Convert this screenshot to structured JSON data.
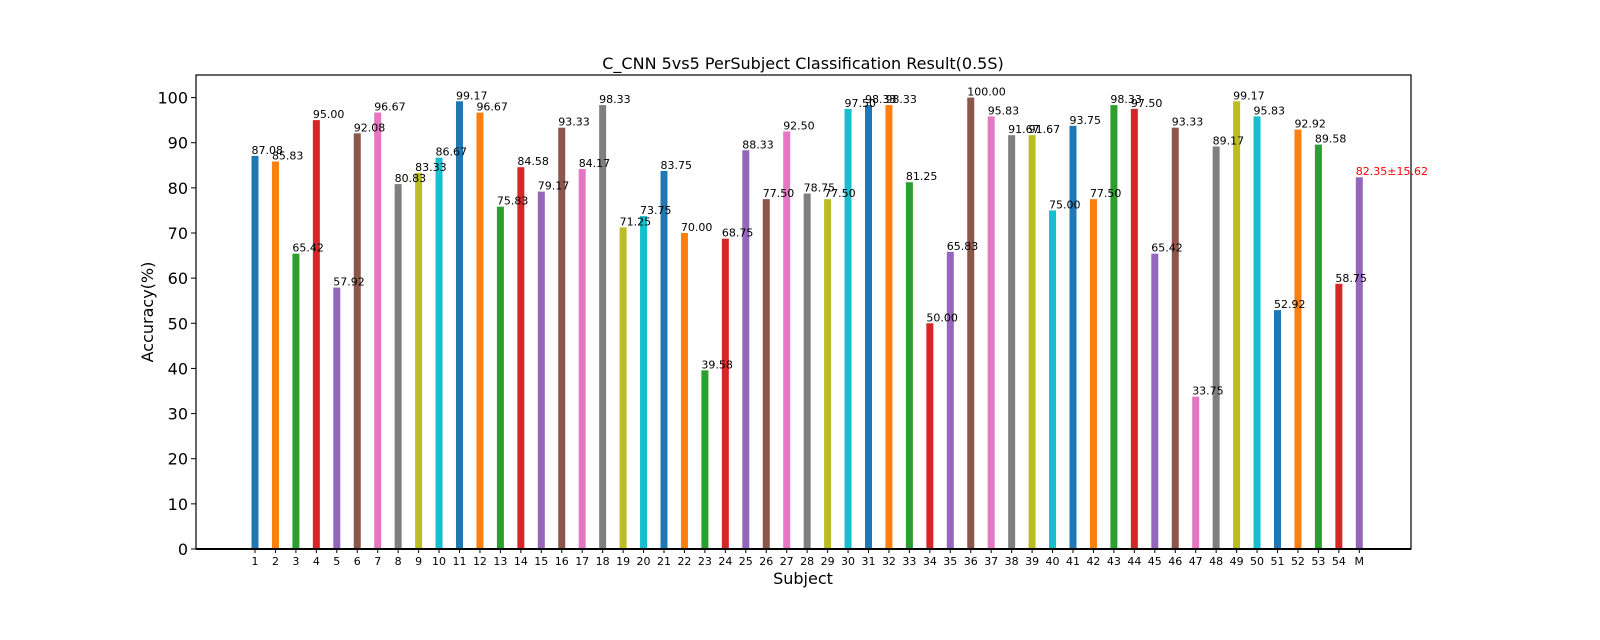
{
  "chart_data": {
    "type": "bar",
    "title": "C_CNN 5vs5 PerSubject Classification Result(0.5S)",
    "xlabel": "Subject",
    "ylabel": "Accuracy(%)",
    "ylim": [
      0,
      105
    ],
    "yticks": [
      0,
      10,
      20,
      30,
      40,
      50,
      60,
      70,
      80,
      90,
      100
    ],
    "grid": false,
    "categories": [
      "1",
      "2",
      "3",
      "4",
      "5",
      "6",
      "7",
      "8",
      "9",
      "10",
      "11",
      "12",
      "13",
      "14",
      "15",
      "16",
      "17",
      "18",
      "19",
      "20",
      "21",
      "22",
      "23",
      "24",
      "25",
      "26",
      "27",
      "28",
      "29",
      "30",
      "31",
      "32",
      "33",
      "34",
      "35",
      "36",
      "37",
      "38",
      "39",
      "40",
      "41",
      "42",
      "43",
      "44",
      "45",
      "46",
      "47",
      "48",
      "49",
      "50",
      "51",
      "52",
      "53",
      "54",
      "M"
    ],
    "values": [
      87.08,
      85.83,
      65.42,
      95.0,
      57.92,
      92.08,
      96.67,
      80.83,
      83.33,
      86.67,
      99.17,
      96.67,
      75.83,
      84.58,
      79.17,
      93.33,
      84.17,
      98.33,
      71.25,
      73.75,
      83.75,
      70.0,
      39.58,
      68.75,
      88.33,
      77.5,
      92.5,
      78.75,
      77.5,
      97.5,
      98.33,
      98.33,
      81.25,
      50.0,
      65.83,
      100.0,
      95.83,
      91.67,
      91.67,
      75.0,
      93.75,
      77.5,
      98.33,
      97.5,
      65.42,
      93.33,
      33.75,
      89.17,
      99.17,
      95.83,
      52.92,
      92.92,
      89.58,
      58.75,
      82.35
    ],
    "data_labels": [
      "87.08",
      "85.83",
      "65.42",
      "95.00",
      "57.92",
      "92.08",
      "96.67",
      "80.83",
      "83.33",
      "86.67",
      "99.17",
      "96.67",
      "75.83",
      "84.58",
      "79.17",
      "93.33",
      "84.17",
      "98.33",
      "71.25",
      "73.75",
      "83.75",
      "70.00",
      "39.58",
      "68.75",
      "88.33",
      "77.50",
      "92.50",
      "78.75",
      "77.50",
      "97.50",
      "98.33",
      "98.33",
      "81.25",
      "50.00",
      "65.83",
      "100.00",
      "95.83",
      "91.67",
      "91.67",
      "75.00",
      "93.75",
      "77.50",
      "98.33",
      "97.50",
      "65.42",
      "93.33",
      "33.75",
      "89.17",
      "99.17",
      "95.83",
      "52.92",
      "92.92",
      "89.58",
      "58.75",
      "82.35±15.62"
    ],
    "palette": [
      "#1f77b4",
      "#ff7f0e",
      "#2ca02c",
      "#d62728",
      "#9467bd",
      "#8c564b",
      "#e377c2",
      "#7f7f7f",
      "#bcbd22",
      "#17becf"
    ],
    "highlight_label_color": "#ff0000"
  }
}
